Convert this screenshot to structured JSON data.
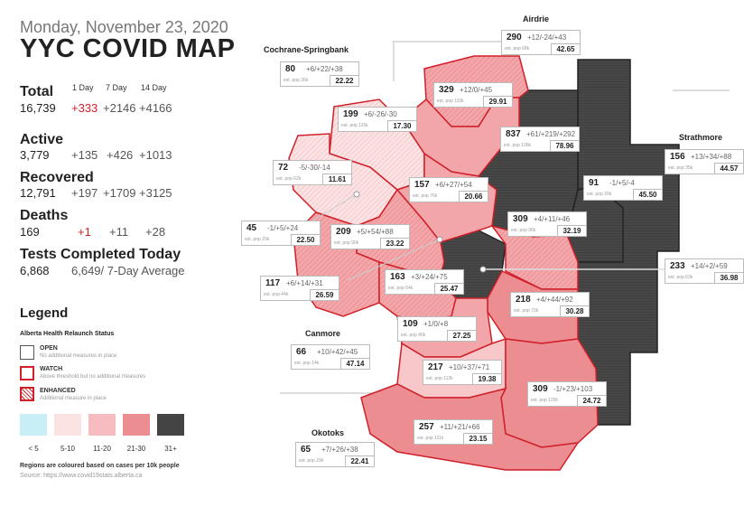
{
  "header": {
    "date": "Monday, November 23, 2020",
    "title": "YYC COVID MAP",
    "col_1day": "1 Day",
    "col_7day": "7 Day",
    "col_14day": "14 Day"
  },
  "stats": {
    "total": {
      "label": "Total",
      "value": "16,739",
      "d1": "+333",
      "d7": "+2146",
      "d14": "+4166"
    },
    "active": {
      "label": "Active",
      "value": "3,779",
      "d1": "+135",
      "d7": "+426",
      "d14": "+1013"
    },
    "recovered": {
      "label": "Recovered",
      "value": "12,791",
      "d1": "+197",
      "d7": "+1709",
      "d14": "+3125"
    },
    "deaths": {
      "label": "Deaths",
      "value": "169",
      "d1": "+1",
      "d7": "+11",
      "d14": "+28"
    },
    "tests": {
      "label": "Tests Completed Today",
      "value": "6,868",
      "avg": "6,649/ 7-Day Average"
    }
  },
  "legend": {
    "title": "Legend",
    "subtitle": "Alberta Health Relaunch Status",
    "statuses": [
      {
        "label": "OPEN",
        "desc": "No additional measures in place"
      },
      {
        "label": "WATCH",
        "desc": "Above threshold but no additional measures"
      },
      {
        "label": "ENHANCED",
        "desc": "Additional measure in place"
      }
    ],
    "scale": [
      {
        "label": "< 5",
        "color": "#c8eef6"
      },
      {
        "label": "5-10",
        "color": "#fbe3e4"
      },
      {
        "label": "11-20",
        "color": "#f6bcbf"
      },
      {
        "label": "21-30",
        "color": "#ec8d91"
      },
      {
        "label": "31+",
        "color": "#444444"
      }
    ],
    "note": "Regions are coloured based on cases per 10k people",
    "source": "Source: https://www.covid19stats.alberta.ca"
  },
  "place_names": {
    "airdrie": "Airdrie",
    "cochrane": "Cochrane-Springbank",
    "strathmore": "Strathmore",
    "canmore": "Canmore",
    "okotoks": "Okotoks"
  },
  "regions": [
    {
      "id": "airdrie",
      "cases": "290",
      "deltas": "+12/-24/+43",
      "pop": "est. pop 68k",
      "rate": "42.65"
    },
    {
      "id": "cochrane",
      "cases": "80",
      "deltas": "+6/+22/+38",
      "pop": "est. pop 36k",
      "rate": "22.22"
    },
    {
      "id": "r329",
      "cases": "329",
      "deltas": "+12/0/+45",
      "pop": "est. pop 110k",
      "rate": "29.91"
    },
    {
      "id": "r199",
      "cases": "199",
      "deltas": "+6/-26/-30",
      "pop": "est. pop 115k",
      "rate": "17.30"
    },
    {
      "id": "r837",
      "cases": "837",
      "deltas": "+61/+219/+292",
      "pop": "est. pop 106k",
      "rate": "78.96"
    },
    {
      "id": "strathmore",
      "cases": "156",
      "deltas": "+13/+34/+88",
      "pop": "est. pop 35k",
      "rate": "44.57"
    },
    {
      "id": "r72",
      "cases": "72",
      "deltas": "-5/-30/-14",
      "pop": "est. pop 62k",
      "rate": "11.61"
    },
    {
      "id": "r157",
      "cases": "157",
      "deltas": "+6/+27/+54",
      "pop": "est. pop 76k",
      "rate": "20.66"
    },
    {
      "id": "r91",
      "cases": "91",
      "deltas": "-1/+5/-4",
      "pop": "est. pop 20k",
      "rate": "45.50"
    },
    {
      "id": "r45",
      "cases": "45",
      "deltas": "-1/+5/+24",
      "pop": "est. pop 20k",
      "rate": "22.50"
    },
    {
      "id": "r209",
      "cases": "209",
      "deltas": "+5/+54/+88",
      "pop": "est. pop 90k",
      "rate": "23.22"
    },
    {
      "id": "r309n",
      "cases": "309",
      "deltas": "+4/+11/+46",
      "pop": "est. pop 96k",
      "rate": "32.19"
    },
    {
      "id": "r233",
      "cases": "233",
      "deltas": "+14/+2/+59",
      "pop": "est. pop 63k",
      "rate": "36.98"
    },
    {
      "id": "r117",
      "cases": "117",
      "deltas": "+6/+14/+31",
      "pop": "est. pop 44k",
      "rate": "26.59"
    },
    {
      "id": "r163",
      "cases": "163",
      "deltas": "+3/+24/+75",
      "pop": "est. pop 64k",
      "rate": "25.47"
    },
    {
      "id": "r218",
      "cases": "218",
      "deltas": "+4/+44/+92",
      "pop": "est. pop 72k",
      "rate": "30.28"
    },
    {
      "id": "r109",
      "cases": "109",
      "deltas": "+1/0/+8",
      "pop": "est. pop 40k",
      "rate": "27.25"
    },
    {
      "id": "canmore",
      "cases": "66",
      "deltas": "+10/+42/+45",
      "pop": "est. pop 14k",
      "rate": "47.14"
    },
    {
      "id": "r217",
      "cases": "217",
      "deltas": "+10/+37/+71",
      "pop": "est. pop 112k",
      "rate": "19.38"
    },
    {
      "id": "r309s",
      "cases": "309",
      "deltas": "-1/+23/+103",
      "pop": "est. pop 125k",
      "rate": "24.72"
    },
    {
      "id": "r257",
      "cases": "257",
      "deltas": "+11/+21/+66",
      "pop": "est. pop 111k",
      "rate": "23.15"
    },
    {
      "id": "okotoks",
      "cases": "65",
      "deltas": "+7/+26/+38",
      "pop": "est. pop 29k",
      "rate": "22.41"
    }
  ]
}
